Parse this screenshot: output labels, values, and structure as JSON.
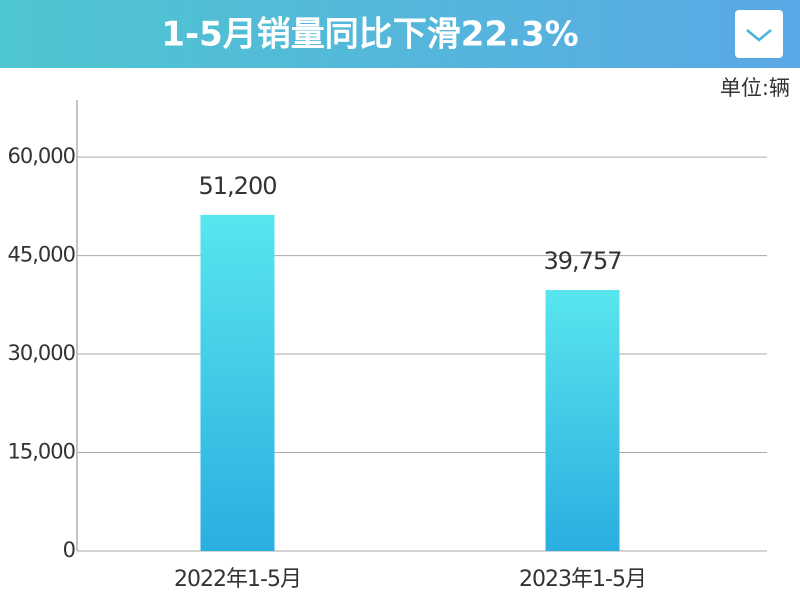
{
  "chart_data": {
    "type": "bar",
    "title": "1-5月销量同比下滑22.3%",
    "unit_label": "单位:辆",
    "categories": [
      "2022年1-5月",
      "2023年1-5月"
    ],
    "values": [
      51200,
      39757
    ],
    "value_labels": [
      "51,200",
      "39,757"
    ],
    "ylim": [
      0,
      68700
    ],
    "yticks": [
      0,
      {
        "value": 15000,
        "label": "15,000"
      },
      {
        "value": 30000,
        "label": "30,000"
      },
      {
        "value": 45000,
        "label": "45,000"
      },
      {
        "value": 60000,
        "label": "60,000"
      }
    ],
    "grid": true
  }
}
